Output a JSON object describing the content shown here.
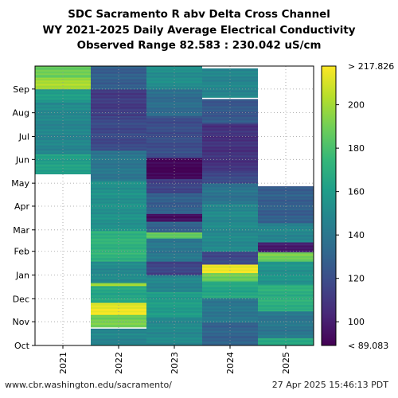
{
  "chart_data": {
    "type": "heatmap",
    "title": "SDC Sacramento R abv Delta Cross Channel",
    "subtitle": "WY 2021-2025 Daily Average Electrical Conductivity",
    "subtitle2": "Observed Range 82.583 : 230.042 uS/cm",
    "x": [
      "2021",
      "2022",
      "2023",
      "2024",
      "2025"
    ],
    "y_ticks": [
      "Oct",
      "Nov",
      "Dec",
      "Jan",
      "Feb",
      "Mar",
      "Apr",
      "May",
      "Jun",
      "Jul",
      "Aug",
      "Sep"
    ],
    "y_tick_days": [
      0,
      31,
      61,
      92,
      123,
      151,
      182,
      212,
      243,
      273,
      304,
      335
    ],
    "colorbar": {
      "ticks": [
        100,
        120,
        140,
        160,
        180,
        200
      ],
      "min": 89.083,
      "max": 217.826,
      "min_label": "< 89.083",
      "max_label": "> 217.826",
      "colormap": "viridis"
    },
    "grid": true,
    "legend": "colorbar right",
    "series": [
      {
        "year": "2021",
        "segments": [
          {
            "start": 0,
            "end": 224,
            "value": null
          },
          {
            "start": 224,
            "end": 250,
            "value": 162
          },
          {
            "start": 250,
            "end": 300,
            "value": 148
          },
          {
            "start": 300,
            "end": 318,
            "value": 150
          },
          {
            "start": 318,
            "end": 335,
            "value": 160
          },
          {
            "start": 335,
            "end": 350,
            "value": 200
          },
          {
            "start": 350,
            "end": 365,
            "value": 188
          }
        ]
      },
      {
        "year": "2022",
        "segments": [
          {
            "start": 0,
            "end": 22,
            "value": 148
          },
          {
            "start": 22,
            "end": 24,
            "value": null
          },
          {
            "start": 24,
            "end": 40,
            "value": 190
          },
          {
            "start": 40,
            "end": 56,
            "value": 214
          },
          {
            "start": 56,
            "end": 78,
            "value": 165
          },
          {
            "start": 78,
            "end": 82,
            "value": 200
          },
          {
            "start": 82,
            "end": 110,
            "value": 150
          },
          {
            "start": 110,
            "end": 150,
            "value": 172
          },
          {
            "start": 150,
            "end": 215,
            "value": 154
          },
          {
            "start": 215,
            "end": 255,
            "value": 140
          },
          {
            "start": 255,
            "end": 300,
            "value": 118
          },
          {
            "start": 300,
            "end": 335,
            "value": 112
          },
          {
            "start": 335,
            "end": 365,
            "value": 128
          }
        ]
      },
      {
        "year": "2023",
        "segments": [
          {
            "start": 0,
            "end": 38,
            "value": 150
          },
          {
            "start": 38,
            "end": 70,
            "value": 160
          },
          {
            "start": 70,
            "end": 92,
            "value": 148
          },
          {
            "start": 92,
            "end": 110,
            "value": 116
          },
          {
            "start": 110,
            "end": 140,
            "value": 140
          },
          {
            "start": 140,
            "end": 148,
            "value": 185
          },
          {
            "start": 148,
            "end": 162,
            "value": 130
          },
          {
            "start": 162,
            "end": 172,
            "value": 95
          },
          {
            "start": 172,
            "end": 200,
            "value": 128
          },
          {
            "start": 200,
            "end": 218,
            "value": 115
          },
          {
            "start": 218,
            "end": 245,
            "value": 90
          },
          {
            "start": 245,
            "end": 300,
            "value": 120
          },
          {
            "start": 300,
            "end": 335,
            "value": 135
          },
          {
            "start": 335,
            "end": 365,
            "value": 152
          }
        ]
      },
      {
        "year": "2024",
        "segments": [
          {
            "start": 0,
            "end": 30,
            "value": 130
          },
          {
            "start": 30,
            "end": 62,
            "value": 140
          },
          {
            "start": 62,
            "end": 84,
            "value": 165
          },
          {
            "start": 84,
            "end": 95,
            "value": 190
          },
          {
            "start": 95,
            "end": 106,
            "value": 216
          },
          {
            "start": 106,
            "end": 123,
            "value": 118
          },
          {
            "start": 123,
            "end": 185,
            "value": 150
          },
          {
            "start": 185,
            "end": 212,
            "value": 138
          },
          {
            "start": 212,
            "end": 228,
            "value": 118
          },
          {
            "start": 228,
            "end": 290,
            "value": 108
          },
          {
            "start": 290,
            "end": 322,
            "value": 125
          },
          {
            "start": 322,
            "end": 324,
            "value": null
          },
          {
            "start": 324,
            "end": 362,
            "value": 148
          },
          {
            "start": 362,
            "end": 365,
            "value": null
          }
        ]
      },
      {
        "year": "2025",
        "segments": [
          {
            "start": 0,
            "end": 10,
            "value": 168
          },
          {
            "start": 10,
            "end": 45,
            "value": 140
          },
          {
            "start": 45,
            "end": 80,
            "value": 170
          },
          {
            "start": 80,
            "end": 110,
            "value": 155
          },
          {
            "start": 110,
            "end": 122,
            "value": 190
          },
          {
            "start": 122,
            "end": 135,
            "value": 100
          },
          {
            "start": 135,
            "end": 160,
            "value": 148
          },
          {
            "start": 160,
            "end": 208,
            "value": 128
          },
          {
            "start": 208,
            "end": 365,
            "value": null
          }
        ]
      }
    ]
  },
  "footer": {
    "url": "www.cbr.washington.edu/sacramento/",
    "timestamp": "27 Apr 2025 15:46:13 PDT"
  }
}
